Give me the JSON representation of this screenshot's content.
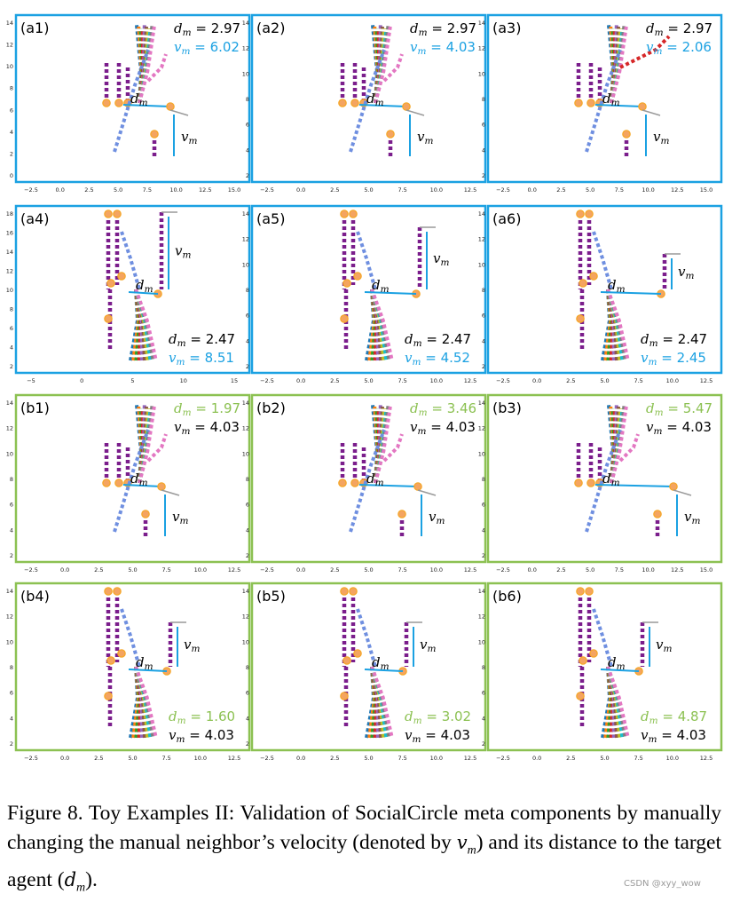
{
  "colors": {
    "blue_frame": "#1ba1e2",
    "green_frame": "#8cc152",
    "blue_text": "#1ba1e2",
    "green_text": "#8cc152",
    "neighbor_purple": "#7b1e8c",
    "marker_orange": "#f5a623",
    "manual_pink": "#e377c2",
    "manual_red": "#d62728",
    "cornflower": "#6f8fe0"
  },
  "symbols": {
    "d_label": "d",
    "d_sub": "m",
    "v_label": "v",
    "v_sub": "m",
    "eq": " = "
  },
  "panels": [
    {
      "id": "a1",
      "label": "(a1)",
      "group": "a",
      "dm": "2.97",
      "vm": "6.02",
      "highlight": "v",
      "text_pos": "top",
      "xticks": [
        "−2.5",
        "0.0",
        "2.5",
        "5.0",
        "7.5",
        "10.0",
        "12.5",
        "15.0"
      ],
      "yticks": [
        "0",
        "2",
        "4",
        "6",
        "8",
        "10",
        "12",
        "14"
      ],
      "variant": "up"
    },
    {
      "id": "a2",
      "label": "(a2)",
      "group": "a",
      "dm": "2.97",
      "vm": "4.03",
      "highlight": "v",
      "text_pos": "top",
      "xticks": [
        "−2.5",
        "0.0",
        "2.5",
        "5.0",
        "7.5",
        "10.0",
        "12.5"
      ],
      "yticks": [
        "2",
        "4",
        "6",
        "8",
        "10",
        "12",
        "14"
      ],
      "variant": "up"
    },
    {
      "id": "a3",
      "label": "(a3)",
      "group": "a",
      "dm": "2.97",
      "vm": "2.06",
      "highlight": "v",
      "text_pos": "top",
      "xticks": [
        "−2.5",
        "0.0",
        "2.5",
        "5.0",
        "7.5",
        "10.0",
        "12.5",
        "15.0"
      ],
      "yticks": [
        "2",
        "4",
        "6",
        "8",
        "10",
        "12",
        "14"
      ],
      "variant": "up"
    },
    {
      "id": "a4",
      "label": "(a4)",
      "group": "a",
      "dm": "2.47",
      "vm": "8.51",
      "highlight": "v",
      "text_pos": "bottom",
      "xticks": [
        "−5",
        "0",
        "5",
        "10",
        "15"
      ],
      "yticks": [
        "2",
        "4",
        "6",
        "8",
        "10",
        "12",
        "14",
        "16",
        "18"
      ],
      "variant": "down"
    },
    {
      "id": "a5",
      "label": "(a5)",
      "group": "a",
      "dm": "2.47",
      "vm": "4.52",
      "highlight": "v",
      "text_pos": "bottom",
      "xticks": [
        "−2.5",
        "0.0",
        "2.5",
        "5.0",
        "7.5",
        "10.0",
        "12.5"
      ],
      "yticks": [
        "2",
        "4",
        "6",
        "8",
        "10",
        "12",
        "14"
      ],
      "variant": "down"
    },
    {
      "id": "a6",
      "label": "(a6)",
      "group": "a",
      "dm": "2.47",
      "vm": "2.45",
      "highlight": "v",
      "text_pos": "bottom",
      "xticks": [
        "−2.5",
        "0.0",
        "2.5",
        "5.0",
        "7.5",
        "10.0",
        "12.5"
      ],
      "yticks": [
        "2",
        "4",
        "6",
        "8",
        "10",
        "12",
        "14"
      ],
      "variant": "down"
    },
    {
      "id": "b1",
      "label": "(b1)",
      "group": "b",
      "dm": "1.97",
      "vm": "4.03",
      "highlight": "d",
      "text_pos": "top",
      "xticks": [
        "−2.5",
        "0.0",
        "2.5",
        "5.0",
        "7.5",
        "10.0",
        "12.5"
      ],
      "yticks": [
        "2",
        "4",
        "6",
        "8",
        "10",
        "12",
        "14"
      ],
      "variant": "up"
    },
    {
      "id": "b2",
      "label": "(b2)",
      "group": "b",
      "dm": "3.46",
      "vm": "4.03",
      "highlight": "d",
      "text_pos": "top",
      "xticks": [
        "−2.5",
        "0.0",
        "2.5",
        "5.0",
        "7.5",
        "10.0",
        "12.5"
      ],
      "yticks": [
        "2",
        "4",
        "6",
        "8",
        "10",
        "12",
        "14"
      ],
      "variant": "up"
    },
    {
      "id": "b3",
      "label": "(b3)",
      "group": "b",
      "dm": "5.47",
      "vm": "4.03",
      "highlight": "d",
      "text_pos": "top",
      "xticks": [
        "−2.5",
        "0.0",
        "2.5",
        "5.0",
        "7.5",
        "10.0",
        "12.5",
        "15.0"
      ],
      "yticks": [
        "2",
        "4",
        "6",
        "8",
        "10",
        "12",
        "14"
      ],
      "variant": "up"
    },
    {
      "id": "b4",
      "label": "(b4)",
      "group": "b",
      "dm": "1.60",
      "vm": "4.03",
      "highlight": "d",
      "text_pos": "bottom",
      "xticks": [
        "−2.5",
        "0.0",
        "2.5",
        "5.0",
        "7.5",
        "10.0",
        "12.5"
      ],
      "yticks": [
        "2",
        "4",
        "6",
        "8",
        "10",
        "12",
        "14"
      ],
      "variant": "down"
    },
    {
      "id": "b5",
      "label": "(b5)",
      "group": "b",
      "dm": "3.02",
      "vm": "4.03",
      "highlight": "d",
      "text_pos": "bottom",
      "xticks": [
        "−2.5",
        "0.0",
        "2.5",
        "5.0",
        "7.5",
        "10.0",
        "12.5"
      ],
      "yticks": [
        "2",
        "4",
        "6",
        "8",
        "10",
        "12",
        "14"
      ],
      "variant": "down"
    },
    {
      "id": "b6",
      "label": "(b6)",
      "group": "b",
      "dm": "4.87",
      "vm": "4.03",
      "highlight": "d",
      "text_pos": "bottom",
      "xticks": [
        "−2.5",
        "0.0",
        "2.5",
        "5.0",
        "7.5",
        "10.0",
        "12.5"
      ],
      "yticks": [
        "2",
        "4",
        "6",
        "8",
        "10",
        "12",
        "14"
      ],
      "variant": "down"
    }
  ],
  "caption": {
    "prefix": "Figure 8. Toy Examples II: Validation of SocialCircle meta components by manually changing the manual neighbor’s velocity (denoted by ",
    "v_symbol": "v",
    "v_sub": "m",
    "middle": ") and its distance to the target agent (",
    "d_symbol": "d",
    "d_sub": "m",
    "suffix": ")."
  },
  "watermark": "CSDN @xyy_wow"
}
